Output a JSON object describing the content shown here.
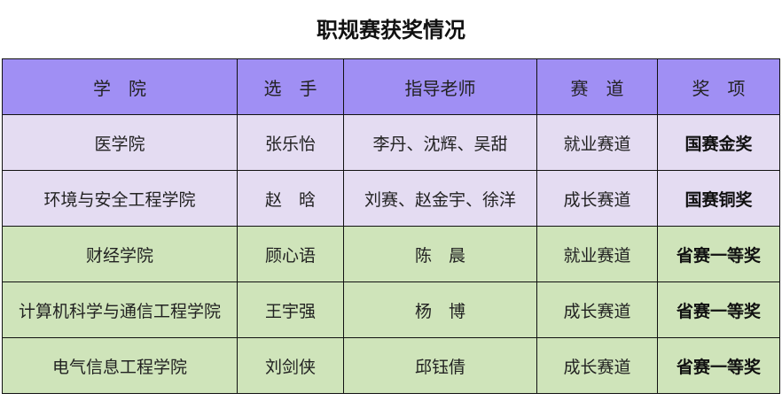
{
  "title": "职规赛获奖情况",
  "columns": [
    "学　院",
    "选　手",
    "指导老师",
    "赛　道",
    "奖　项"
  ],
  "rows": [
    {
      "college": "医学院",
      "player": "张乐怡",
      "advisors": "李丹、沈辉、吴甜",
      "track": "就业赛道",
      "award": "国赛金奖",
      "color": "#e4dcf2"
    },
    {
      "college": "环境与安全工程学院",
      "player": "赵　晗",
      "advisors": "刘赛、赵金宇、徐洋",
      "track": "成长赛道",
      "award": "国赛铜奖",
      "color": "#e4dcf2"
    },
    {
      "college": "财经学院",
      "player": "顾心语",
      "advisors": "陈　晨",
      "track": "就业赛道",
      "award": "省赛一等奖",
      "color": "#cfe4ba"
    },
    {
      "college": "计算机科学与通信工程学院",
      "player": "王宇强",
      "advisors": "杨　博",
      "track": "成长赛道",
      "award": "省赛一等奖",
      "color": "#cfe4ba"
    },
    {
      "college": "电气信息工程学院",
      "player": "刘剑侠",
      "advisors": "邱钰倩",
      "track": "成长赛道",
      "award": "省赛一等奖",
      "color": "#cfe4ba"
    }
  ],
  "header_color": "#a08ff4"
}
